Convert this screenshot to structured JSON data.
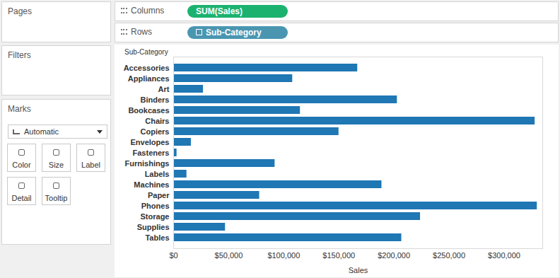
{
  "interface": {
    "pages": "Pages",
    "filters": "Filters",
    "marks": {
      "title": "Marks",
      "mark_type": "Automatic",
      "buttons": [
        "Color",
        "Size",
        "Label",
        "Detail",
        "Tooltip"
      ]
    },
    "columns": {
      "title": "Columns",
      "pill": "SUM(Sales)"
    },
    "rows": {
      "title": "Rows",
      "pill": "Sub-Category"
    }
  },
  "chart_data": {
    "type": "bar",
    "orientation": "horizontal",
    "ylabel": "Sub-Category",
    "xlabel": "Sales",
    "categories": [
      "Accessories",
      "Appliances",
      "Art",
      "Binders",
      "Bookcases",
      "Chairs",
      "Copiers",
      "Envelopes",
      "Fasteners",
      "Furnishings",
      "Labels",
      "Machines",
      "Paper",
      "Phones",
      "Storage",
      "Supplies",
      "Tables"
    ],
    "values": [
      167000,
      108000,
      27000,
      203000,
      115000,
      328000,
      150000,
      16000,
      3000,
      92000,
      12000,
      189000,
      78000,
      330000,
      224000,
      47000,
      207000
    ],
    "color": "#1f77b4",
    "xlim": [
      0,
      335000
    ],
    "xticks": [
      {
        "value": 0,
        "label": "$0"
      },
      {
        "value": 50000,
        "label": "$50,000"
      },
      {
        "value": 100000,
        "label": "$100,000"
      },
      {
        "value": 150000,
        "label": "$150,000"
      },
      {
        "value": 200000,
        "label": "$200,000"
      },
      {
        "value": 250000,
        "label": "$250,000"
      },
      {
        "value": 300000,
        "label": "$300,000"
      }
    ],
    "grid": false
  }
}
